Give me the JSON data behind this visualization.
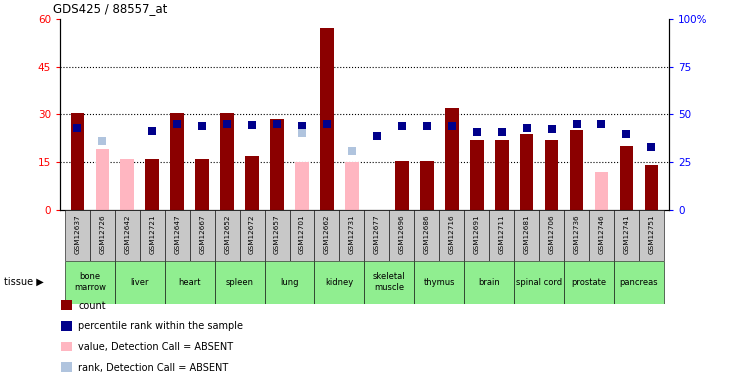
{
  "title": "GDS425 / 88557_at",
  "gsm_labels": [
    "GSM12637",
    "GSM12726",
    "GSM12642",
    "GSM12721",
    "GSM12647",
    "GSM12667",
    "GSM12652",
    "GSM12672",
    "GSM12657",
    "GSM12701",
    "GSM12662",
    "GSM12731",
    "GSM12677",
    "GSM12696",
    "GSM12686",
    "GSM12716",
    "GSM12691",
    "GSM12711",
    "GSM12681",
    "GSM12706",
    "GSM12736",
    "GSM12746",
    "GSM12741",
    "GSM12751"
  ],
  "tissues": [
    "bone\nmarrow",
    "liver",
    "heart",
    "spleen",
    "lung",
    "kidney",
    "skeletal\nmuscle",
    "thymus",
    "brain",
    "spinal cord",
    "prostate",
    "pancreas"
  ],
  "tissue_starts": [
    0,
    2,
    4,
    6,
    8,
    10,
    12,
    14,
    16,
    18,
    20,
    22
  ],
  "tissue_spans": [
    2,
    2,
    2,
    2,
    2,
    2,
    2,
    2,
    2,
    2,
    2,
    2
  ],
  "bar_values": [
    30.5,
    null,
    null,
    16,
    30.5,
    16,
    30.5,
    17,
    28.5,
    null,
    57,
    null,
    null,
    15.5,
    15.5,
    32,
    22,
    22,
    24,
    22,
    25,
    null,
    20,
    14
  ],
  "bar_absent_values": [
    null,
    19,
    16,
    null,
    null,
    null,
    null,
    null,
    null,
    15,
    null,
    15,
    null,
    null,
    null,
    null,
    null,
    null,
    null,
    null,
    null,
    12,
    null,
    null
  ],
  "rank_present": [
    43,
    null,
    null,
    41.5,
    45,
    44,
    45,
    44.5,
    45,
    44,
    45,
    null,
    38.5,
    44,
    44,
    44,
    41,
    41,
    43,
    42.5,
    45,
    45,
    40,
    33
  ],
  "rank_absent": [
    null,
    36,
    null,
    null,
    null,
    null,
    null,
    null,
    null,
    40.5,
    null,
    31,
    null,
    null,
    null,
    null,
    null,
    null,
    null,
    null,
    null,
    null,
    null,
    null
  ],
  "bar_color": "#8B0000",
  "bar_absent_color": "#FFB6C1",
  "rank_present_color": "#00008B",
  "rank_absent_color": "#B0C4DE",
  "ylim_left": [
    0,
    60
  ],
  "ylim_right": [
    0,
    100
  ],
  "yticks_left": [
    0,
    15,
    30,
    45,
    60
  ],
  "ytick_labels_left": [
    "0",
    "15",
    "30",
    "45",
    "60"
  ],
  "yticks_right": [
    0,
    25,
    50,
    75,
    100
  ],
  "ytick_labels_right": [
    "0",
    "25",
    "50",
    "75",
    "100%"
  ],
  "hlines": [
    15,
    30,
    45
  ],
  "xlabel_bg_color": "#C8C8C8",
  "tissue_bg_color": "#90EE90",
  "bar_width": 0.55
}
